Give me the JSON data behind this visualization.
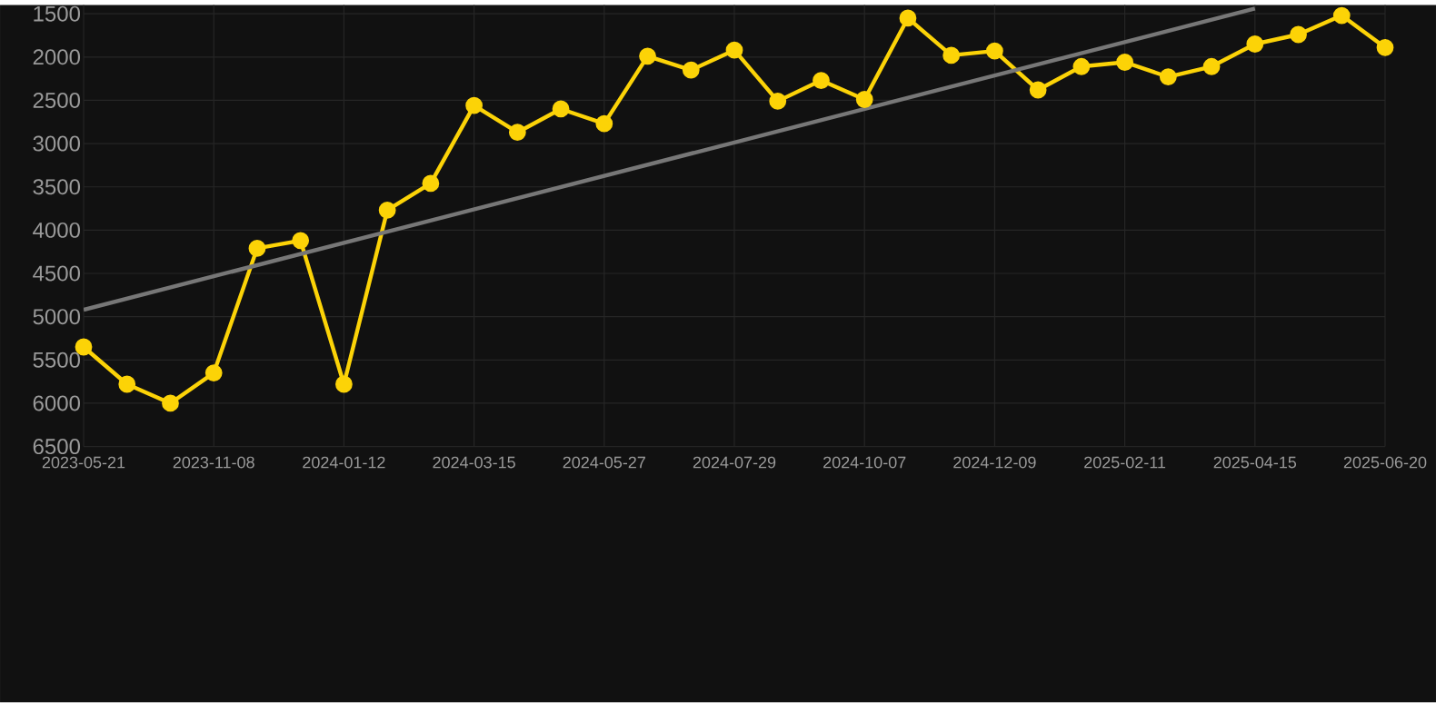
{
  "chart_data": {
    "type": "line",
    "categories": [
      "2023-05-21",
      null,
      null,
      "2023-11-08",
      null,
      null,
      "2024-01-12",
      null,
      null,
      "2024-03-15",
      null,
      null,
      "2024-05-27",
      null,
      null,
      "2024-07-29",
      null,
      null,
      "2024-10-07",
      null,
      null,
      "2024-12-09",
      null,
      null,
      "2025-02-11",
      null,
      null,
      "2025-04-15",
      null,
      null,
      "2025-06-20"
    ],
    "series": [
      {
        "color": "#fcd307",
        "marker": "circle",
        "values": [
          5350,
          5780,
          6000,
          5650,
          4210,
          4120,
          5780,
          3770,
          3460,
          2560,
          2870,
          2600,
          2770,
          1990,
          2150,
          1920,
          2510,
          2270,
          2490,
          1550,
          1980,
          1930,
          2380,
          2110,
          2060,
          2230,
          2110,
          1850,
          1740,
          1520,
          1890
        ]
      },
      {
        "color": "#777777",
        "marker": "none",
        "values": [
          4920,
          null,
          null,
          null,
          null,
          null,
          null,
          null,
          null,
          null,
          null,
          null,
          null,
          null,
          null,
          null,
          null,
          null,
          null,
          null,
          null,
          null,
          null,
          null,
          null,
          null,
          null,
          1440,
          null,
          null,
          null
        ]
      }
    ],
    "ylim": [
      6500,
      1400
    ],
    "yticks": [
      1500,
      2000,
      2500,
      3000,
      3500,
      4000,
      4500,
      5000,
      5500,
      6000,
      6500
    ],
    "grid": true,
    "line_style": "solid"
  }
}
